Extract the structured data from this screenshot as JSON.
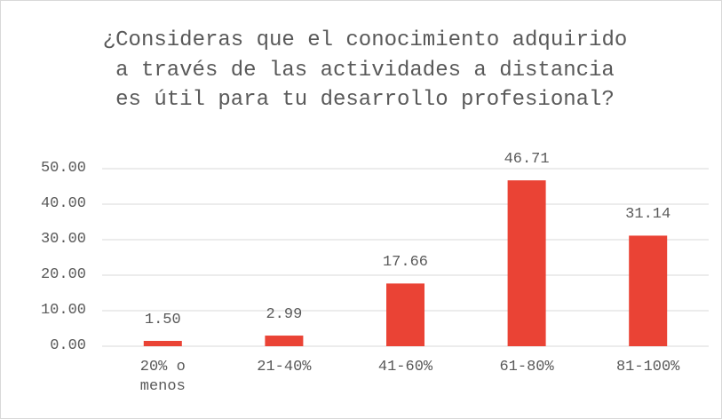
{
  "chart_data": {
    "type": "bar",
    "title": "¿Consideras que el conocimiento adquirido a través de las actividades a distancia es útil para tu desarrollo profesional?",
    "categories": [
      "20% o menos",
      "21-40%",
      "41-60%",
      "61-80%",
      "81-100%"
    ],
    "values": [
      1.5,
      2.99,
      17.66,
      46.71,
      31.14
    ],
    "value_labels": [
      "1.50",
      "2.99",
      "17.66",
      "46.71",
      "31.14"
    ],
    "color": "#ea4335",
    "ylim": [
      0,
      50
    ],
    "yticks": [
      {
        "value": 0,
        "label": "0.00"
      },
      {
        "value": 10,
        "label": "10.00"
      },
      {
        "value": 20,
        "label": "20.00"
      },
      {
        "value": 30,
        "label": "30.00"
      },
      {
        "value": 40,
        "label": "40.00"
      },
      {
        "value": 50,
        "label": "50.00"
      }
    ],
    "grid": true
  }
}
